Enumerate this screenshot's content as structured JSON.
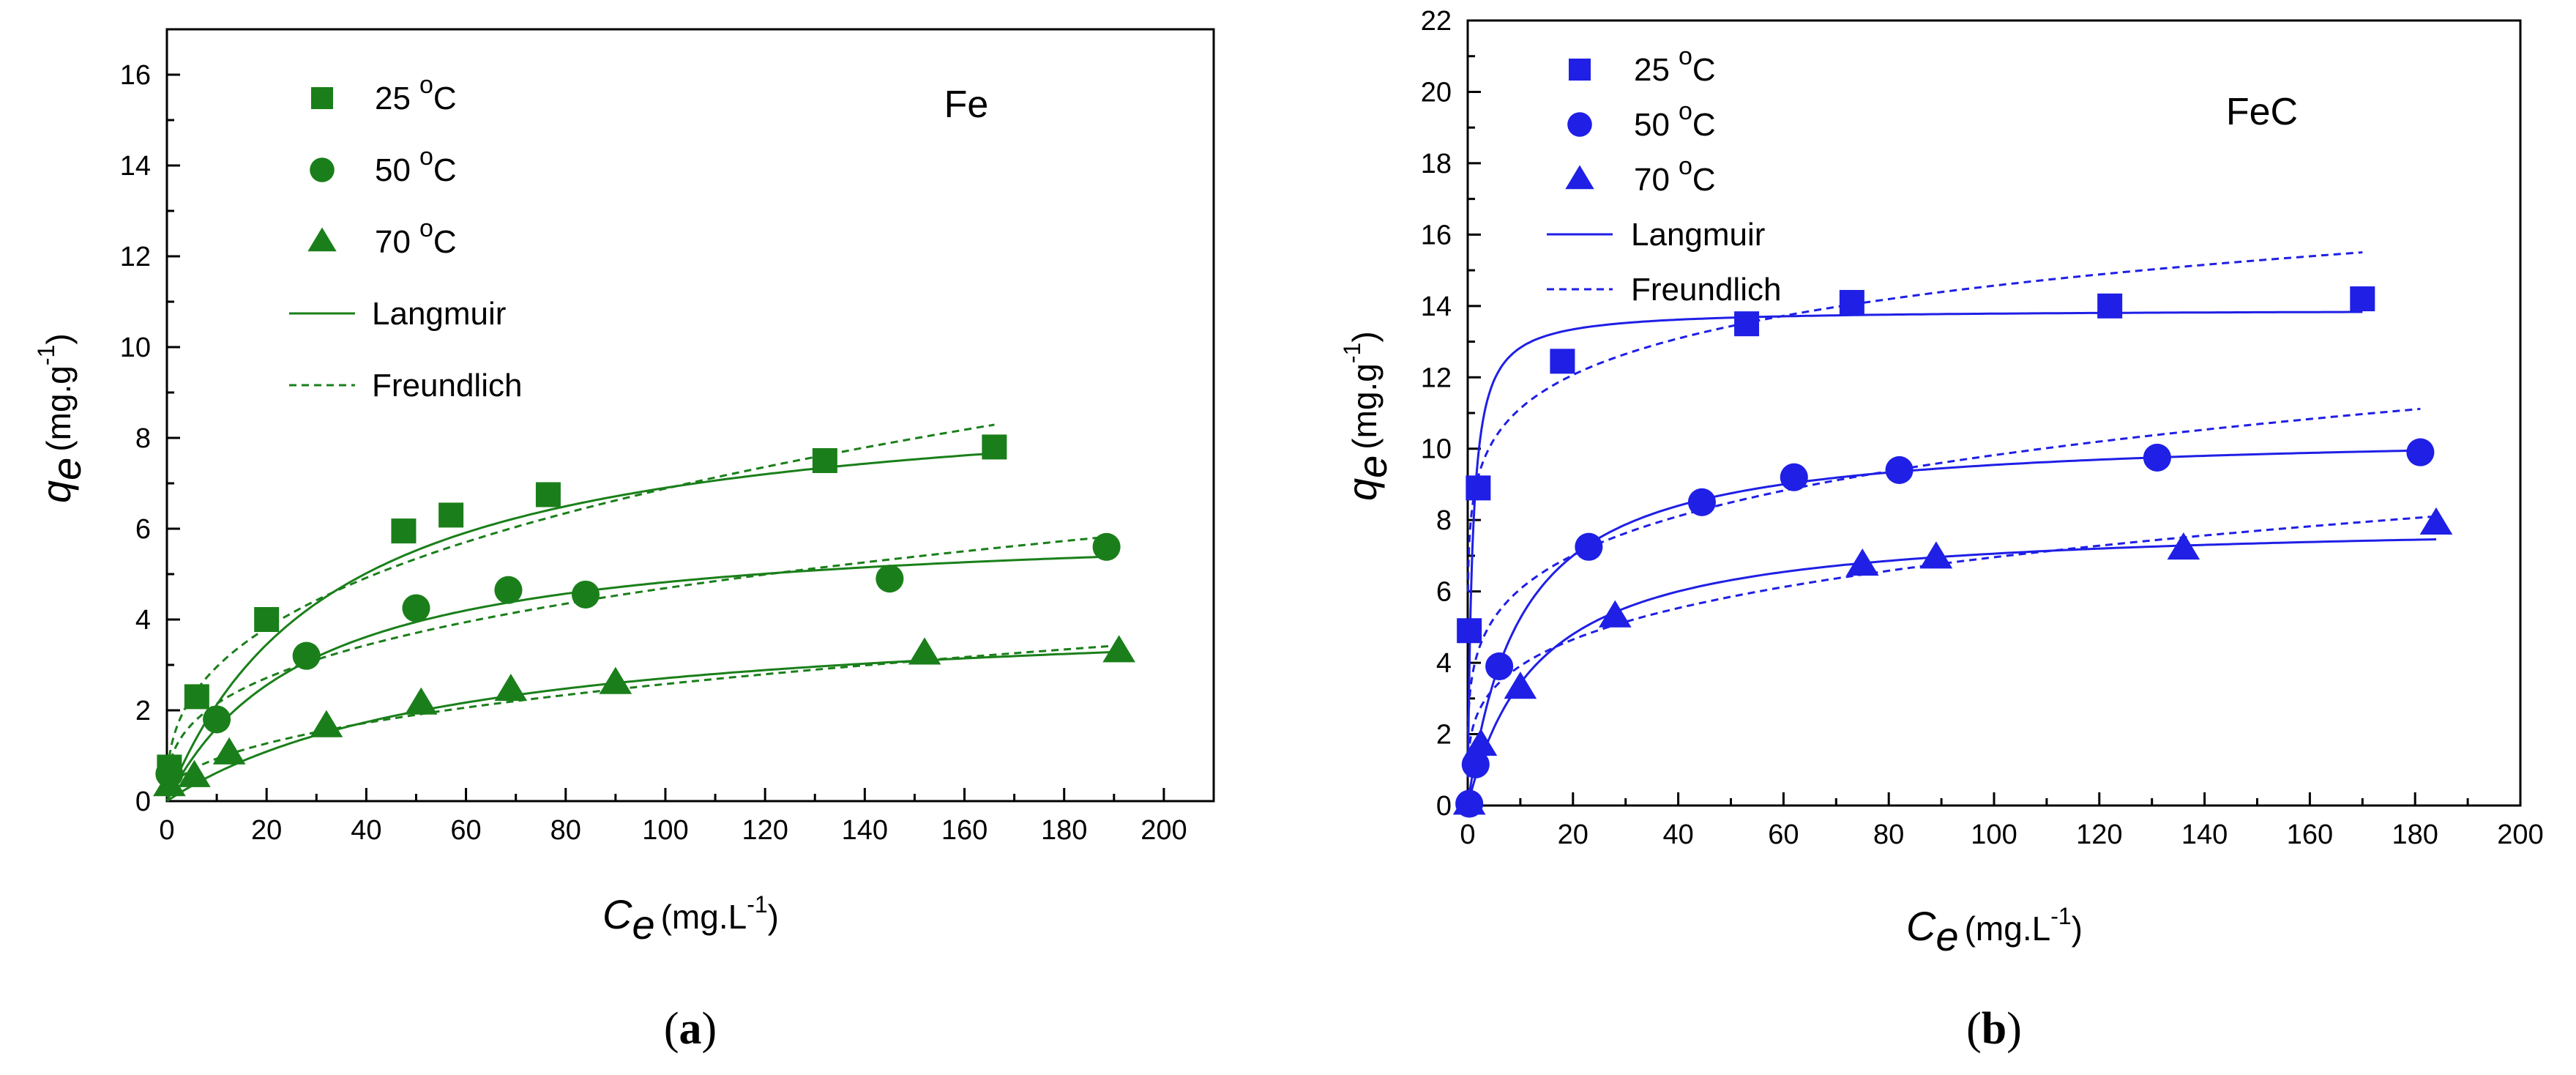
{
  "chart_data": [
    {
      "id": "a",
      "type": "scatter",
      "panel_label": "a",
      "title": "Fe",
      "color": "#1a7f1a",
      "xlabel_symbol": "C",
      "xlabel_subscript": "e",
      "xlabel_unit": "(mg.L",
      "xlabel_unit_exp": "-1",
      "xlabel_unit_close": ")",
      "ylabel_symbol": "q",
      "ylabel_subscript": "e",
      "ylabel_unit": "(mg.g",
      "ylabel_unit_exp": "-1",
      "ylabel_unit_close": ")",
      "xlim": [
        0,
        210
      ],
      "ylim": [
        0,
        17
      ],
      "xticks": [
        0,
        20,
        40,
        60,
        80,
        100,
        120,
        140,
        160,
        180,
        200
      ],
      "xtick_labels": [
        "0",
        "20",
        "40",
        "60",
        "80",
        "100",
        "120",
        "140",
        "160",
        "180",
        "200"
      ],
      "yticks": [
        0,
        2,
        4,
        6,
        8,
        10,
        12,
        14,
        16
      ],
      "ytick_labels": [
        "0",
        "2",
        "4",
        "6",
        "8",
        "10",
        "12",
        "14",
        "16"
      ],
      "legend": [
        {
          "label": "25",
          "sup": "o",
          "unit": "C",
          "marker": "square"
        },
        {
          "label": "50",
          "sup": "o",
          "unit": "C",
          "marker": "circle"
        },
        {
          "label": "70",
          "sup": "o",
          "unit": "C",
          "marker": "triangle"
        },
        {
          "label": "Langmuir",
          "line": "solid"
        },
        {
          "label": "Freundlich",
          "line": "dashed"
        }
      ],
      "series": [
        {
          "name": "25 oC",
          "marker": "square",
          "x": [
            0.5,
            6,
            20,
            47.5,
            57,
            76.5,
            132,
            166
          ],
          "y": [
            0.75,
            2.3,
            4.0,
            5.95,
            6.3,
            6.75,
            7.5,
            7.8
          ],
          "langmuir": {
            "qm": 9.2,
            "kl": 0.03,
            "xmax": 166
          },
          "freundlich": {
            "kf": 1.27,
            "n": 0.367,
            "xmax": 166
          }
        },
        {
          "name": "50 oC",
          "marker": "circle",
          "x": [
            0.5,
            10,
            28,
            50,
            68.5,
            84,
            145,
            188.5
          ],
          "y": [
            0.6,
            1.8,
            3.2,
            4.25,
            4.65,
            4.55,
            4.9,
            5.6
          ],
          "langmuir": {
            "qm": 6.2,
            "kl": 0.035,
            "xmax": 188
          },
          "freundlich": {
            "kf": 0.98,
            "n": 0.34,
            "xmax": 188
          }
        },
        {
          "name": "70 oC",
          "marker": "triangle",
          "x": [
            0.5,
            5.5,
            12.5,
            32,
            51,
            69,
            90,
            152,
            191
          ],
          "y": [
            0.35,
            0.55,
            1.05,
            1.65,
            2.15,
            2.45,
            2.6,
            3.25,
            3.3
          ],
          "langmuir": {
            "qm": 4.3,
            "kl": 0.017,
            "xmax": 191
          },
          "freundlich": {
            "kf": 0.34,
            "n": 0.44,
            "xmax": 191
          }
        }
      ]
    },
    {
      "id": "b",
      "type": "scatter",
      "panel_label": "b",
      "title": "FeC",
      "color": "#1f1fe6",
      "xlabel_symbol": "C",
      "xlabel_subscript": "e",
      "xlabel_unit": "(mg.L",
      "xlabel_unit_exp": "-1",
      "xlabel_unit_close": ")",
      "ylabel_symbol": "q",
      "ylabel_subscript": "e",
      "ylabel_unit": "(mg.g",
      "ylabel_unit_exp": "-1",
      "ylabel_unit_close": ")",
      "xlim": [
        0,
        200
      ],
      "ylim": [
        0,
        22
      ],
      "xticks": [
        0,
        20,
        40,
        60,
        80,
        100,
        120,
        140,
        160,
        180,
        200
      ],
      "xtick_labels": [
        "0",
        "20",
        "40",
        "60",
        "80",
        "100",
        "120",
        "140",
        "160",
        "180",
        "200"
      ],
      "yticks": [
        0,
        2,
        4,
        6,
        8,
        10,
        12,
        14,
        16,
        18,
        20,
        22
      ],
      "ytick_labels": [
        "0",
        "2",
        "4",
        "6",
        "8",
        "10",
        "12",
        "14",
        "16",
        "18",
        "20",
        "22"
      ],
      "legend": [
        {
          "label": "25",
          "sup": "o",
          "unit": "C",
          "marker": "square"
        },
        {
          "label": "50",
          "sup": "o",
          "unit": "C",
          "marker": "circle"
        },
        {
          "label": "70",
          "sup": "o",
          "unit": "C",
          "marker": "triangle"
        },
        {
          "label": "Langmuir",
          "line": "solid"
        },
        {
          "label": "Freundlich",
          "line": "dashed"
        }
      ],
      "series": [
        {
          "name": "25 oC",
          "marker": "square",
          "x": [
            0.3,
            2,
            18,
            53,
            73,
            122,
            170
          ],
          "y": [
            4.9,
            8.9,
            12.45,
            13.5,
            14.1,
            14.0,
            14.2
          ],
          "langmuir": {
            "qm": 13.9,
            "kl": 1.2,
            "xmax": 170
          },
          "freundlich": {
            "kf": 8.5,
            "n": 0.117,
            "xmax": 170
          }
        },
        {
          "name": "50 oC",
          "marker": "circle",
          "x": [
            0.3,
            1.5,
            6,
            23,
            44.5,
            62,
            82,
            131,
            181
          ],
          "y": [
            0.05,
            1.15,
            3.9,
            7.25,
            8.5,
            9.2,
            9.4,
            9.75,
            9.9
          ],
          "langmuir": {
            "qm": 10.5,
            "kl": 0.1,
            "xmax": 181
          },
          "freundlich": {
            "kf": 3.75,
            "n": 0.209,
            "xmax": 181
          }
        },
        {
          "name": "70 oC",
          "marker": "triangle",
          "x": [
            0.3,
            2.5,
            10,
            28,
            75,
            89,
            136,
            184
          ],
          "y": [
            0.05,
            1.7,
            3.3,
            5.3,
            6.75,
            6.95,
            7.2,
            7.9
          ],
          "langmuir": {
            "qm": 8.0,
            "kl": 0.075,
            "xmax": 184
          },
          "freundlich": {
            "kf": 2.2,
            "n": 0.25,
            "xmax": 184
          }
        }
      ]
    }
  ]
}
